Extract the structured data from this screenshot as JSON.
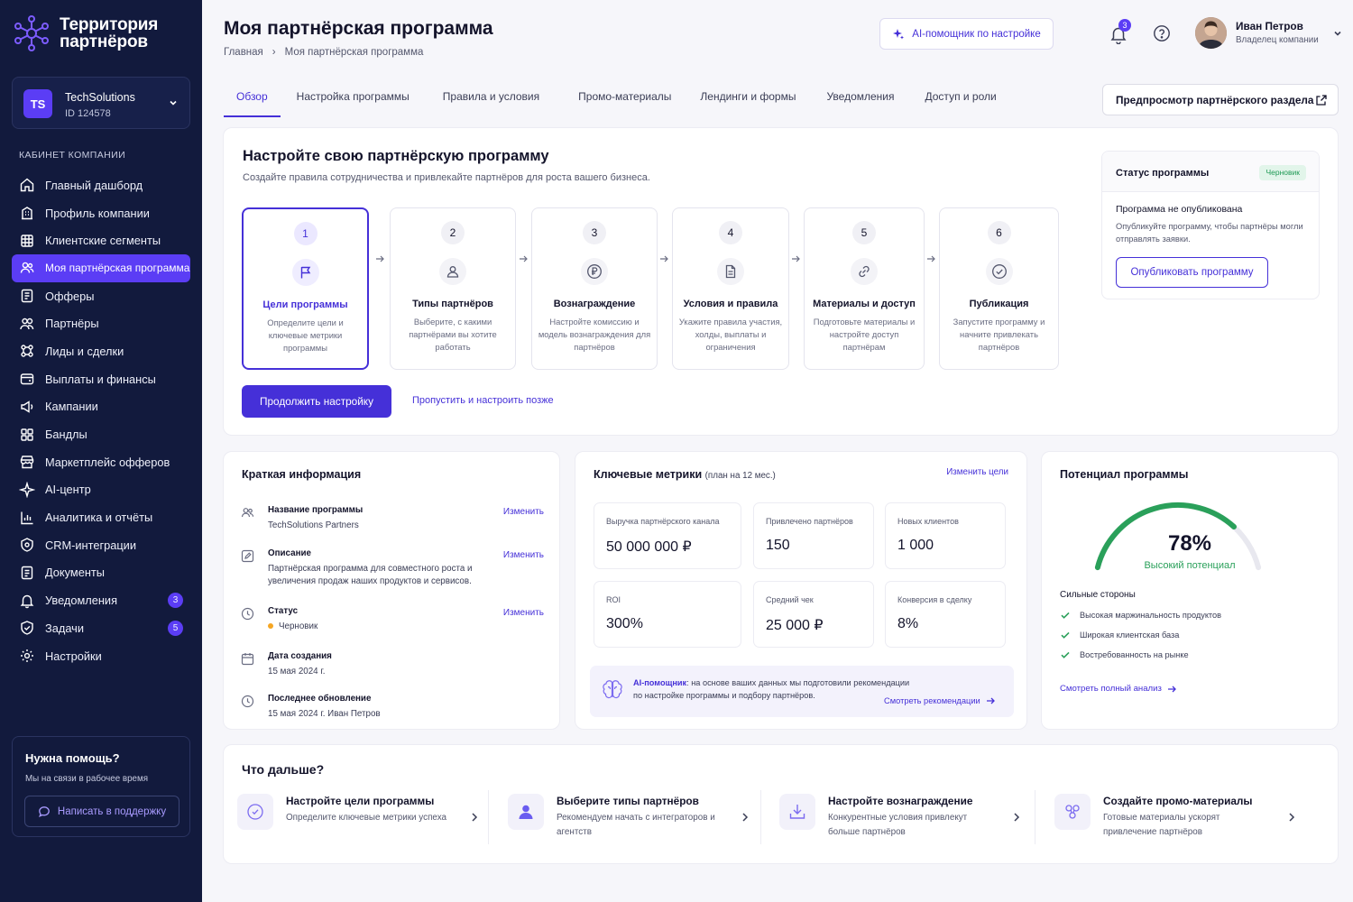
{
  "brand": {
    "name": "Территория партнёров"
  },
  "company": {
    "initials": "TS",
    "name": "TechSolutions",
    "id": "ID 124578"
  },
  "sidebar": {
    "section": "КАБИНЕТ КОМПАНИИ",
    "items": [
      {
        "label": "Главный дашборд",
        "icon": "home-icon"
      },
      {
        "label": "Профиль компании",
        "icon": "building-icon"
      },
      {
        "label": "Клиентские сегменты",
        "icon": "grid-icon"
      },
      {
        "label": "Моя партнёрская программа",
        "icon": "users-icon",
        "active": true
      },
      {
        "label": "Офферы",
        "icon": "offer-icon"
      },
      {
        "label": "Партнёры",
        "icon": "partners-icon"
      },
      {
        "label": "Лиды и сделки",
        "icon": "leads-icon"
      },
      {
        "label": "Выплаты и финансы",
        "icon": "wallet-icon"
      },
      {
        "label": "Кампании",
        "icon": "megaphone-icon"
      },
      {
        "label": "Бандлы",
        "icon": "bundle-icon"
      },
      {
        "label": "Маркетплейс офферов",
        "icon": "store-icon"
      },
      {
        "label": "AI-центр",
        "icon": "sparkle-icon"
      },
      {
        "label": "Аналитика и отчёты",
        "icon": "chart-icon"
      },
      {
        "label": "CRM-интеграции",
        "icon": "crm-icon"
      },
      {
        "label": "Документы",
        "icon": "document-icon"
      },
      {
        "label": "Уведомления",
        "icon": "bell-icon",
        "badge": "3"
      },
      {
        "label": "Задачи",
        "icon": "task-icon",
        "badge": "5"
      },
      {
        "label": "Настройки",
        "icon": "gear-icon"
      }
    ],
    "help": {
      "title": "Нужна помощь?",
      "subtitle": "Мы на связи в рабочее время",
      "button": "Написать в поддержку"
    }
  },
  "header": {
    "title": "Моя партнёрская программа",
    "breadcrumb": [
      "Главная",
      "Моя партнёрская программа"
    ],
    "ai_button": "AI-помощник по настройке",
    "notifications": "3",
    "user": {
      "name": "Иван Петров",
      "role": "Владелец компании"
    }
  },
  "tabs": [
    "Обзор",
    "Настройка программы",
    "Правила и условия",
    "Промо-материалы",
    "Лендинги и формы",
    "Уведомления",
    "Доступ и роли"
  ],
  "preview_button": "Предпросмотр партнёрского раздела",
  "setup": {
    "title": "Настройте свою партнёрскую программу",
    "subtitle": "Создайте правила сотрудничества и привлекайте партнёров для роста вашего бизнеса.",
    "steps": [
      {
        "num": "1",
        "title": "Цели программы",
        "desc": "Определите цели и ключевые метрики программы"
      },
      {
        "num": "2",
        "title": "Типы партнёров",
        "desc": "Выберите, с какими партнёрами вы хотите работать"
      },
      {
        "num": "3",
        "title": "Вознаграждение",
        "desc": "Настройте комиссию и модель вознаграждения для партнёров"
      },
      {
        "num": "4",
        "title": "Условия и правила",
        "desc": "Укажите правила участия, холды, выплаты и ограничения"
      },
      {
        "num": "5",
        "title": "Материалы и доступ",
        "desc": "Подготовьте материалы и настройте доступ партнёрам"
      },
      {
        "num": "6",
        "title": "Публикация",
        "desc": "Запустите программу и начните привлекать партнёров"
      }
    ],
    "continue": "Продолжить настройку",
    "skip": "Пропустить и настроить позже",
    "status": {
      "label": "Статус программы",
      "badge": "Черновик",
      "heading": "Программа не опубликована",
      "text": "Опубликуйте программу, чтобы партнёры могли отправлять заявки.",
      "button": "Опубликовать программу"
    }
  },
  "info": {
    "title": "Краткая информация",
    "edit": "Изменить",
    "rows": [
      {
        "label": "Название программы",
        "value": "TechSolutions Partners"
      },
      {
        "label": "Описание",
        "value": "Партнёрская программа для совместного роста и увеличения продаж наших продуктов и сервисов."
      },
      {
        "label": "Статус",
        "value": "Черновик"
      },
      {
        "label": "Дата создания",
        "value": "15 мая 2024 г."
      },
      {
        "label": "Последнее обновление",
        "value": "15 мая 2024 г. Иван Петров"
      }
    ]
  },
  "metrics": {
    "title": "Ключевые метрики",
    "subtitle": "(план на 12 мес.)",
    "edit": "Изменить цели",
    "items": [
      {
        "label": "Выручка партнёрского канала",
        "value": "50 000 000 ₽"
      },
      {
        "label": "Привлечено партнёров",
        "value": "150"
      },
      {
        "label": "Новых клиентов",
        "value": "1 000"
      },
      {
        "label": "ROI",
        "value": "300%"
      },
      {
        "label": "Средний чек",
        "value": "25 000 ₽"
      },
      {
        "label": "Конверсия в сделку",
        "value": "8%"
      }
    ],
    "ai": {
      "name": "AI-помощник",
      "line1": ": на основе ваших данных мы подготовили рекомендации",
      "line2": "по настройке программы и подбору партнёров.",
      "link": "Смотреть рекомендации"
    }
  },
  "potential": {
    "title": "Потенциал программы",
    "value": 78,
    "percent": "78%",
    "label": "Высокий потенциал",
    "strengths_title": "Сильные стороны",
    "strengths": [
      "Высокая маржинальность продуктов",
      "Широкая клиентская база",
      "Востребованность на рынке"
    ],
    "link": "Смотреть полный анализ",
    "colors": {
      "fill": "#2aa05a",
      "track": "#e8e8ef"
    }
  },
  "next": {
    "title": "Что дальше?",
    "items": [
      {
        "title": "Настройте цели программы",
        "desc": "Определите ключевые метрики успеха"
      },
      {
        "title": "Выберите типы партнёров",
        "desc": "Рекомендуем начать с интеграторов и агентств"
      },
      {
        "title": "Настройте вознаграждение",
        "desc": "Конкурентные условия привлекут больше партнёров"
      },
      {
        "title": "Создайте промо-материалы",
        "desc": "Готовые материалы ускорят привлечение партнёров"
      }
    ]
  },
  "colors": {
    "accent": "#4530d8",
    "sidebar": "#121a3d",
    "success": "#2aa05a"
  }
}
